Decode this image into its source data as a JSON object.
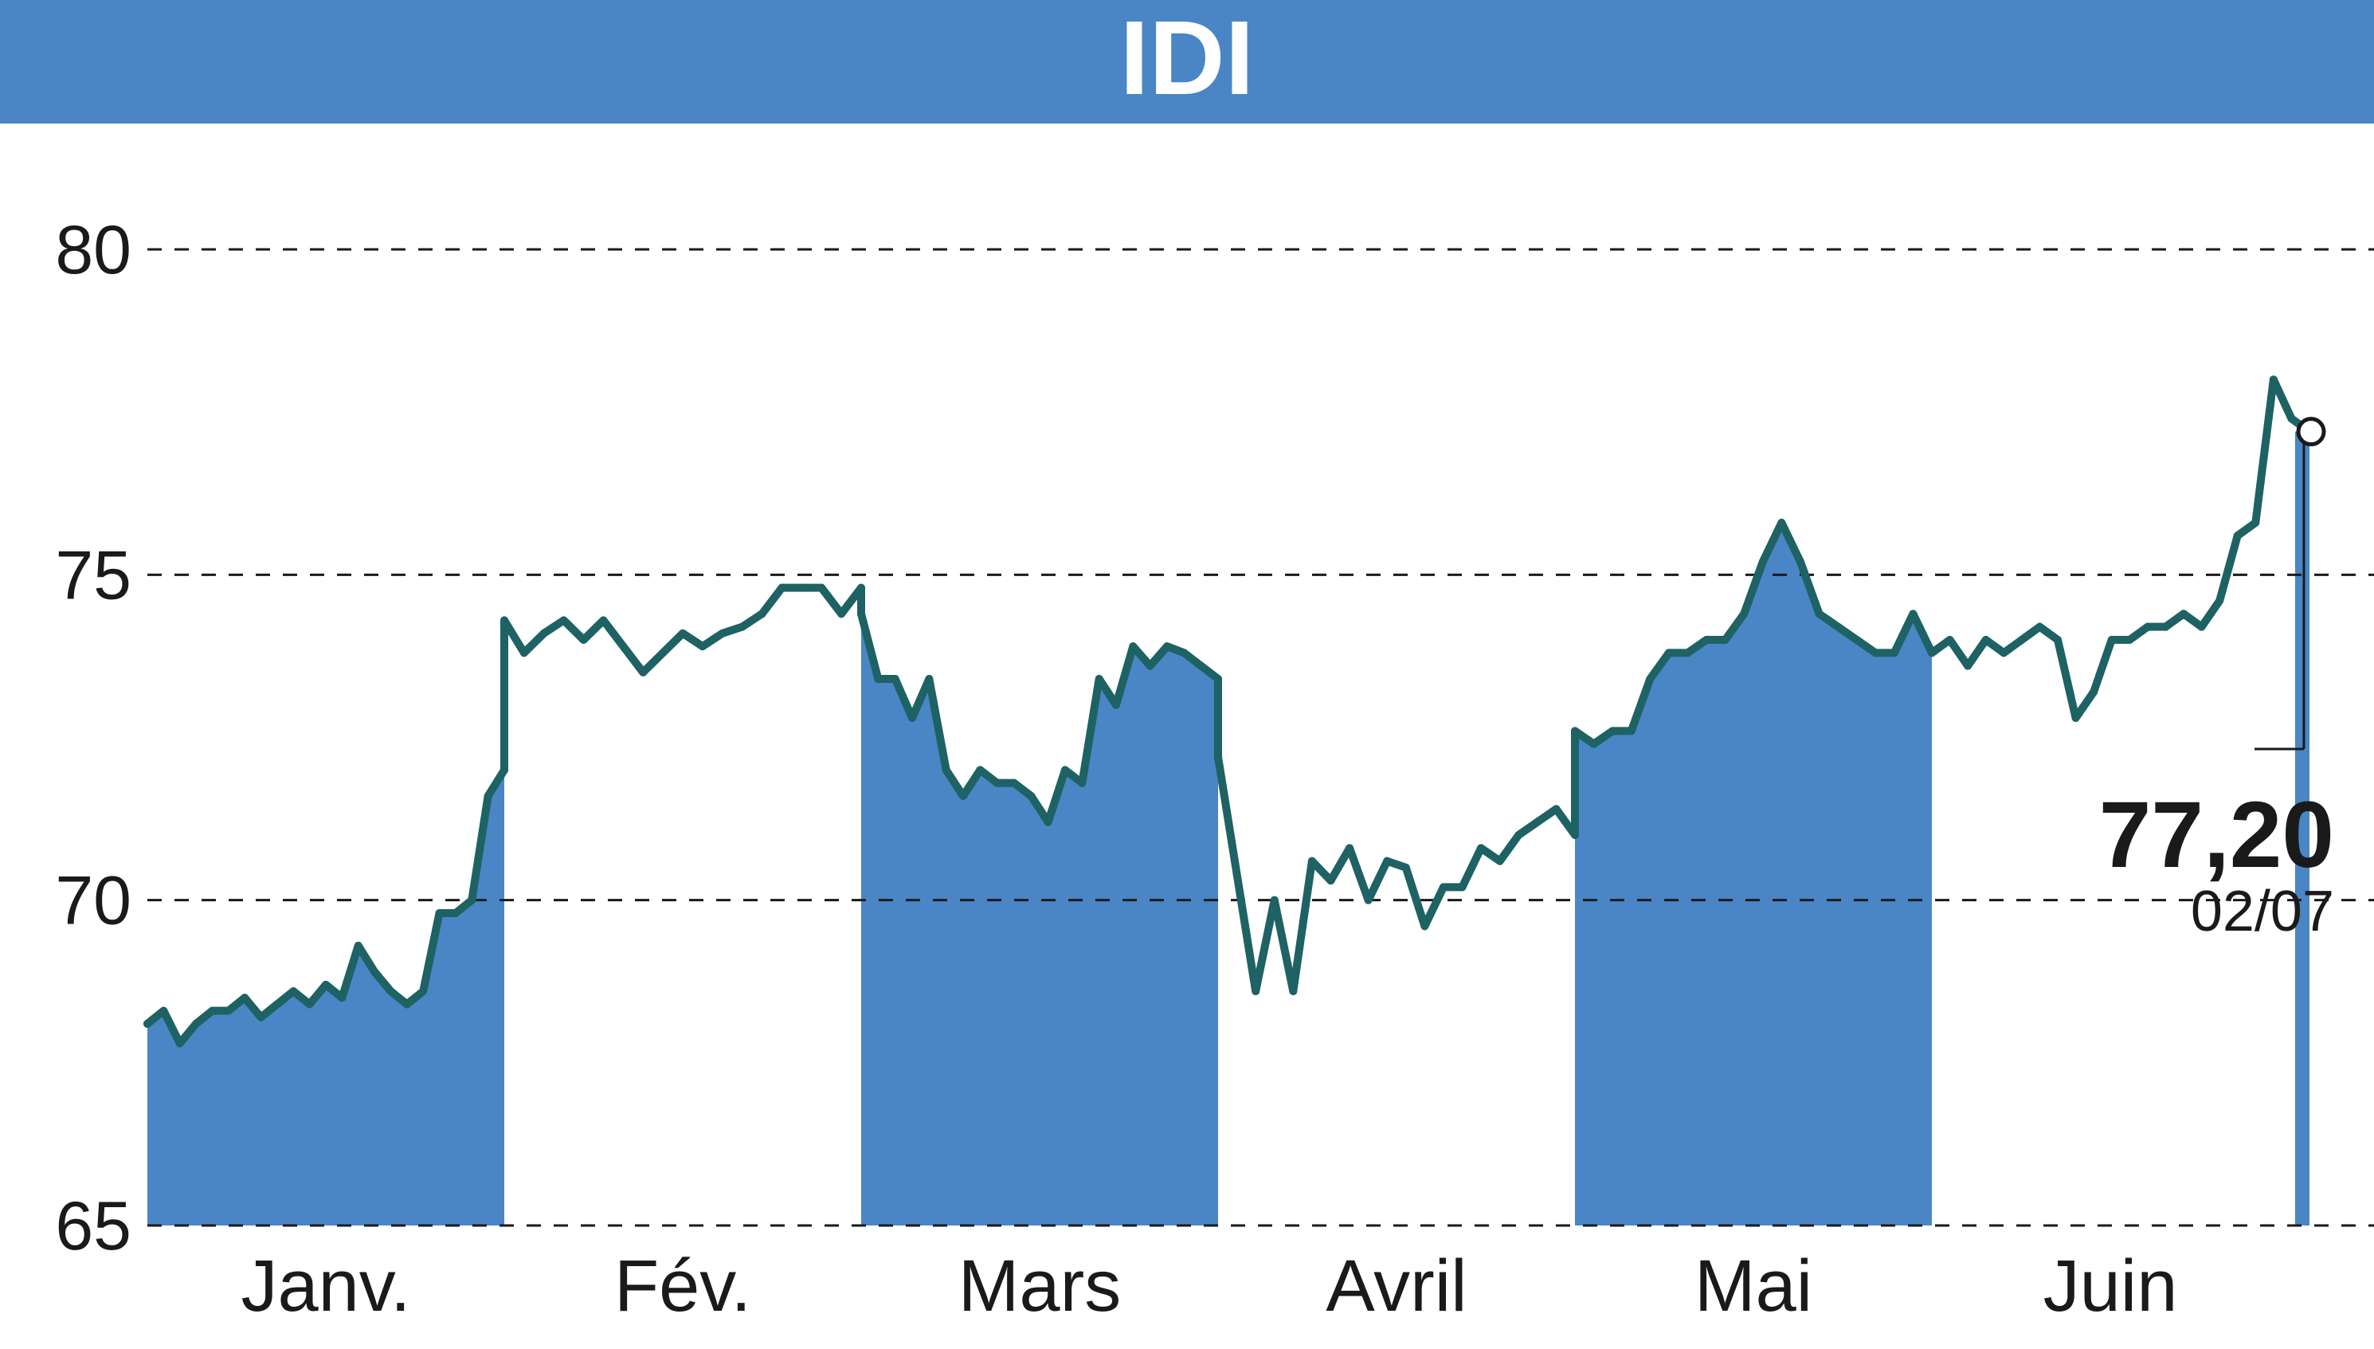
{
  "chart_data": {
    "type": "line",
    "title": "IDI",
    "ylim": [
      65,
      80
    ],
    "yticks": [
      "65",
      "70",
      "75",
      "80"
    ],
    "months": [
      "Janv.",
      "Fév.",
      "Mars",
      "Avril",
      "Mai",
      "Juin"
    ],
    "last_value_label": "77,20",
    "last_date_label": "02/07",
    "grid": "horizontal dashed",
    "colors": {
      "band": "#4a86c5",
      "line": "#1e6264",
      "title_bar": "#4a86c5"
    },
    "series": [
      {
        "month": 0,
        "values": [
          68.1,
          68.3,
          67.8,
          68.1,
          68.3,
          68.3,
          68.5,
          68.2,
          68.4,
          68.6,
          68.4,
          68.7,
          68.5,
          69.3,
          68.9,
          68.6,
          68.4,
          68.6,
          69.8,
          69.8,
          70.0,
          71.6,
          72.0
        ]
      },
      {
        "month": 1,
        "values": [
          74.3,
          73.8,
          74.1,
          74.3,
          74.0,
          74.3,
          73.9,
          73.5,
          73.8,
          74.1,
          73.9,
          74.1,
          74.2,
          74.4,
          74.8,
          74.8,
          74.8,
          74.4,
          74.8
        ]
      },
      {
        "month": 2,
        "values": [
          74.4,
          73.4,
          73.4,
          72.8,
          73.4,
          72.0,
          71.6,
          72.0,
          71.8,
          71.8,
          71.6,
          71.2,
          72.0,
          71.8,
          73.4,
          73.0,
          73.9,
          73.6,
          73.9,
          73.8,
          73.6,
          73.4
        ]
      },
      {
        "month": 3,
        "values": [
          72.2,
          70.4,
          68.6,
          70.0,
          68.6,
          70.6,
          70.3,
          70.8,
          70.0,
          70.6,
          70.5,
          69.6,
          70.2,
          70.2,
          70.8,
          70.6,
          71.0,
          71.2,
          71.4,
          71.0
        ]
      },
      {
        "month": 4,
        "values": [
          72.6,
          72.4,
          72.6,
          72.6,
          73.4,
          73.8,
          73.8,
          74.0,
          74.0,
          74.4,
          75.2,
          75.8,
          75.2,
          74.4,
          74.2,
          74.0,
          73.8,
          73.8,
          74.4,
          73.8
        ]
      },
      {
        "month": 5,
        "values": [
          73.8,
          74.0,
          73.6,
          74.0,
          73.8,
          74.0,
          74.2,
          74.0,
          72.8,
          73.2,
          74.0,
          74.0,
          74.2,
          74.2,
          74.4,
          74.2,
          74.6,
          75.6,
          75.8,
          78.0,
          77.4,
          77.2
        ]
      }
    ]
  }
}
